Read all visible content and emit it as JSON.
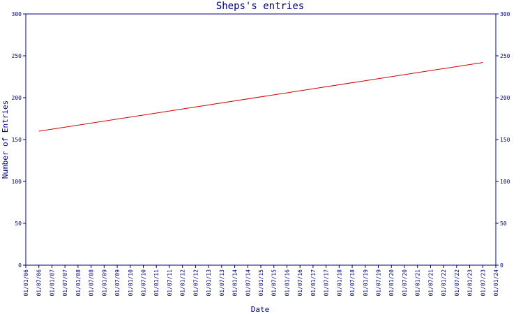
{
  "chart_data": {
    "type": "line",
    "title": "Sheps's entries",
    "xlabel": "Date",
    "ylabel": "Number of Entries",
    "ylim": [
      0,
      300
    ],
    "yticks": [
      0,
      50,
      100,
      150,
      200,
      250,
      300
    ],
    "y_axis_right": true,
    "grid": false,
    "x_tick_labels": [
      "01/01/06",
      "01/07/06",
      "01/01/07",
      "01/07/07",
      "01/01/08",
      "01/07/08",
      "01/01/09",
      "01/07/09",
      "01/01/10",
      "01/07/10",
      "01/01/11",
      "01/07/11",
      "01/01/12",
      "01/07/12",
      "01/01/13",
      "01/07/13",
      "01/01/14",
      "01/07/14",
      "01/01/15",
      "01/07/15",
      "01/01/16",
      "01/07/16",
      "01/01/17",
      "01/07/17",
      "01/01/18",
      "01/07/18",
      "01/01/19",
      "01/07/19",
      "01/01/20",
      "01/07/20",
      "01/01/21",
      "01/07/21",
      "01/01/22",
      "01/07/22",
      "01/01/23",
      "01/07/23",
      "01/01/24"
    ],
    "series": [
      {
        "color": "#cc0000",
        "points": [
          {
            "x": "01/07/06",
            "y": 160
          },
          {
            "x": "01/07/23",
            "y": 242
          }
        ]
      }
    ],
    "colors": {
      "axis": "#000080",
      "line": "#cc0000",
      "text": "#000080"
    }
  }
}
